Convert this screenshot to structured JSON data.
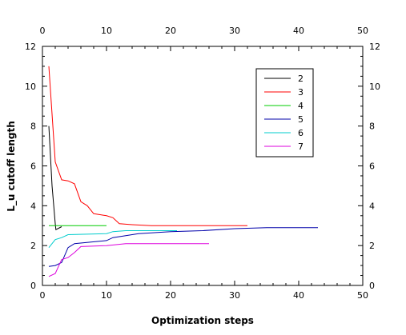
{
  "chart_data": {
    "type": "line",
    "title": "",
    "xlabel": "Optimization steps",
    "ylabel": "L_u cutoff length",
    "xlim": [
      0,
      50
    ],
    "ylim": [
      0,
      12
    ],
    "xticks": [
      0,
      10,
      20,
      30,
      40,
      50
    ],
    "yticks": [
      0,
      2,
      4,
      6,
      8,
      10,
      12
    ],
    "top_axis_ticks": [
      0,
      10,
      20,
      30,
      40,
      50
    ],
    "right_axis_ticks": [
      0,
      2,
      4,
      6,
      8,
      10,
      12
    ],
    "grid": false,
    "legend_position": "top-right",
    "series": [
      {
        "name": "2",
        "color": "#000000",
        "points": [
          [
            1,
            8.0
          ],
          [
            1.5,
            5.0
          ],
          [
            2,
            3.1
          ],
          [
            2.1,
            2.8
          ],
          [
            3,
            2.95
          ]
        ]
      },
      {
        "name": "3",
        "color": "#ff0000",
        "points": [
          [
            1,
            11.0
          ],
          [
            2,
            6.2
          ],
          [
            3,
            5.3
          ],
          [
            4,
            5.25
          ],
          [
            5,
            5.1
          ],
          [
            6,
            4.2
          ],
          [
            7,
            4.0
          ],
          [
            8,
            3.6
          ],
          [
            10,
            3.5
          ],
          [
            11,
            3.4
          ],
          [
            12,
            3.1
          ],
          [
            14,
            3.05
          ],
          [
            17,
            3.0
          ],
          [
            32,
            3.0
          ]
        ]
      },
      {
        "name": "4",
        "color": "#00cc00",
        "points": [
          [
            1,
            3.0
          ],
          [
            10,
            3.0
          ]
        ]
      },
      {
        "name": "5",
        "color": "#0000aa",
        "points": [
          [
            1,
            0.95
          ],
          [
            2,
            1.0
          ],
          [
            3,
            1.15
          ],
          [
            4,
            1.9
          ],
          [
            5,
            2.1
          ],
          [
            10,
            2.25
          ],
          [
            11,
            2.4
          ],
          [
            13,
            2.5
          ],
          [
            15,
            2.6
          ],
          [
            20,
            2.7
          ],
          [
            25,
            2.75
          ],
          [
            30,
            2.85
          ],
          [
            35,
            2.9
          ],
          [
            43,
            2.9
          ]
        ]
      },
      {
        "name": "6",
        "color": "#00cccc",
        "points": [
          [
            1,
            1.9
          ],
          [
            2,
            2.3
          ],
          [
            3,
            2.4
          ],
          [
            4,
            2.55
          ],
          [
            10,
            2.6
          ],
          [
            11,
            2.7
          ],
          [
            13,
            2.75
          ],
          [
            21,
            2.75
          ]
        ]
      },
      {
        "name": "7",
        "color": "#dd00dd",
        "points": [
          [
            1,
            0.45
          ],
          [
            2,
            0.6
          ],
          [
            3,
            1.3
          ],
          [
            4,
            1.4
          ],
          [
            5,
            1.65
          ],
          [
            6,
            1.95
          ],
          [
            10,
            2.0
          ],
          [
            13,
            2.1
          ],
          [
            26,
            2.1
          ]
        ]
      }
    ]
  }
}
